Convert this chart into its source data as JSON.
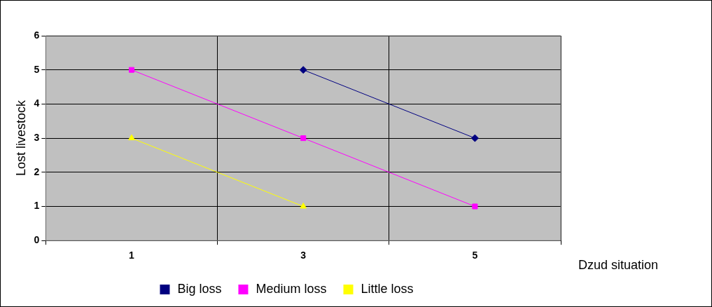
{
  "chart_data": {
    "type": "line",
    "xlabel": "Dzud situation",
    "ylabel": "Lost livestock",
    "categories": [
      "1",
      "3",
      "5"
    ],
    "ylim": [
      0,
      6
    ],
    "yticks": [
      0,
      1,
      2,
      3,
      4,
      5,
      6
    ],
    "grid": true,
    "legend": "bottom",
    "line_style": "solid",
    "series": [
      {
        "name": "Big loss",
        "color": "#000080",
        "marker": "diamond",
        "values": [
          null,
          5,
          3
        ]
      },
      {
        "name": "Medium loss",
        "color": "#ff00ff",
        "marker": "square",
        "values": [
          5,
          3,
          1
        ]
      },
      {
        "name": "Little loss",
        "color": "#ffff00",
        "marker": "triangle",
        "values": [
          3,
          1,
          null
        ]
      }
    ]
  }
}
